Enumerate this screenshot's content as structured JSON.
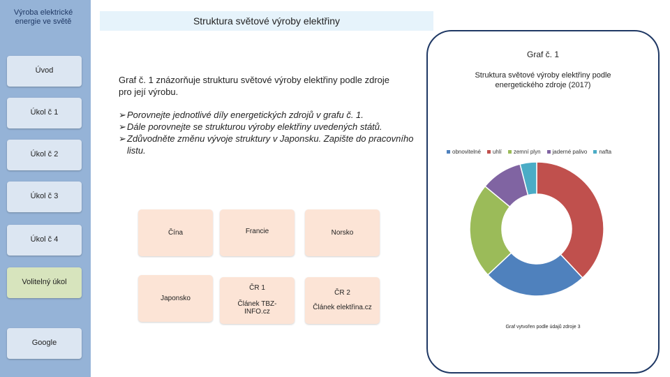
{
  "sidebar": {
    "title": "Výroba elektrické energie ve světě",
    "items": [
      {
        "label": "Úvod",
        "style": "blue"
      },
      {
        "label": "Úkol č 1",
        "style": "blue"
      },
      {
        "label": "Úkol č 2",
        "style": "blue"
      },
      {
        "label": "Úkol č 3",
        "style": "blue"
      },
      {
        "label": "Úkol č 4",
        "style": "blue"
      },
      {
        "label": "Volitelný úkol",
        "style": "green"
      },
      {
        "label": "Google",
        "style": "blue"
      }
    ]
  },
  "header": {
    "title": "Struktura světové výroby elektřiny"
  },
  "main": {
    "intro": "Graf č. 1 znázorňuje strukturu světové výroby elektřiny podle zdroje pro její výrobu.",
    "tasks": [
      "Porovnejte jednotlivé díly energetických zdrojů v grafu č. 1.",
      "Dále porovnejte se strukturou výroby elektřiny uvedených států.",
      "Zdůvodněte změnu vývoje struktury v Japonsku. Zapište do pracovního listu."
    ],
    "tiles": [
      {
        "line1": "Čína",
        "line2": ""
      },
      {
        "line1": "Francie",
        "line2": ""
      },
      {
        "line1": "Norsko",
        "line2": ""
      },
      {
        "line1": "Japonsko",
        "line2": ""
      },
      {
        "line1": "ČR 1",
        "line2": "Článek TBZ-INFO.cz"
      },
      {
        "line1": "ČR 2",
        "line2": "Článek elektřina.cz"
      }
    ]
  },
  "chart_panel": {
    "graf_label": "Graf č. 1",
    "source": "Graf vytvořen podle údajů zdroje 3"
  },
  "colors": {
    "sidebar": "#95b3d7",
    "button": "#dce6f2",
    "button_green": "#d7e4bd",
    "tile": "#fce4d6",
    "title_bar": "#e6f3fb",
    "frame_border": "#1f3864"
  },
  "chart_data": {
    "type": "pie",
    "variant": "donut",
    "title": "Struktura světové výroby elektřiny podle energetického zdroje (2017)",
    "legend_position": "top",
    "categories": [
      "obnovitelné",
      "uhlí",
      "zemní plyn",
      "jaderné palivo",
      "nafta"
    ],
    "values": [
      25,
      38,
      23,
      10,
      4
    ],
    "colors": [
      "#4f81bd",
      "#c0504d",
      "#9bbb59",
      "#8064a2",
      "#4bacc6"
    ]
  }
}
